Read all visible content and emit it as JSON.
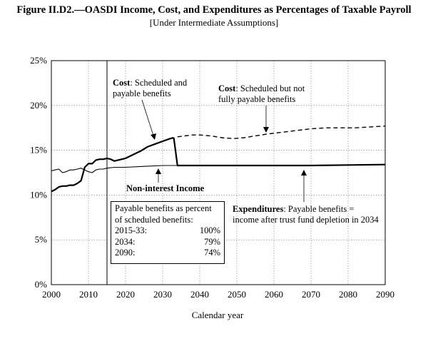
{
  "title": "Figure II.D2.—OASDI Income, Cost, and Expenditures as Percentages of Taxable Payroll",
  "subtitle": "[Under Intermediate Assumptions]",
  "chart_data": {
    "type": "line",
    "xlabel": "Calendar year",
    "ylabel": "",
    "xlim": [
      2000,
      2090
    ],
    "ylim": [
      0,
      25
    ],
    "x_ticks": [
      "2000",
      "2010",
      "2020",
      "2030",
      "2040",
      "2050",
      "2060",
      "2070",
      "2080",
      "2090"
    ],
    "y_ticks": [
      "0%",
      "5%",
      "10%",
      "15%",
      "20%",
      "25%"
    ],
    "grid": true,
    "vertical_marker_year": 2015,
    "series": [
      {
        "style": "solid-thick",
        "x": [
          2000,
          2001,
          2002,
          2003,
          2004,
          2005,
          2006,
          2007,
          2008,
          2009,
          2010,
          2011,
          2012,
          2013,
          2014,
          2015,
          2016,
          2017,
          2018,
          2019,
          2020,
          2022,
          2024,
          2026,
          2028,
          2030,
          2032,
          2033
        ],
        "y": [
          10.4,
          10.6,
          10.9,
          11.0,
          11.0,
          11.1,
          11.1,
          11.3,
          11.6,
          13.1,
          13.5,
          13.5,
          13.9,
          14.0,
          14.0,
          14.1,
          14.0,
          13.8,
          13.9,
          14.0,
          14.1,
          14.5,
          14.9,
          15.4,
          15.7,
          16.0,
          16.3,
          16.4
        ]
      },
      {
        "style": "dashed",
        "x": [
          2034,
          2036,
          2038,
          2040,
          2043,
          2046,
          2049,
          2052,
          2055,
          2058,
          2062,
          2066,
          2070,
          2074,
          2078,
          2082,
          2086,
          2090
        ],
        "y": [
          16.5,
          16.6,
          16.7,
          16.7,
          16.6,
          16.4,
          16.3,
          16.4,
          16.6,
          16.8,
          17.0,
          17.2,
          17.4,
          17.5,
          17.5,
          17.5,
          17.6,
          17.7
        ]
      },
      {
        "style": "solid-thin",
        "x": [
          2000,
          2001,
          2002,
          2003,
          2004,
          2005,
          2006,
          2007,
          2008,
          2009,
          2010,
          2011,
          2012,
          2013,
          2014,
          2015,
          2017,
          2020,
          2025,
          2030,
          2034,
          2040,
          2050,
          2060,
          2070,
          2080,
          2090
        ],
        "y": [
          12.7,
          12.8,
          12.9,
          12.5,
          12.6,
          12.8,
          12.8,
          12.9,
          13.0,
          12.8,
          12.6,
          12.5,
          12.8,
          12.9,
          12.9,
          13.0,
          13.1,
          13.1,
          13.2,
          13.3,
          13.3,
          13.3,
          13.3,
          13.3,
          13.3,
          13.35,
          13.4
        ]
      },
      {
        "style": "solid-thick",
        "x": [
          2033,
          2034,
          2040,
          2050,
          2060,
          2070,
          2080,
          2090
        ],
        "y": [
          16.4,
          13.3,
          13.3,
          13.3,
          13.3,
          13.3,
          13.35,
          13.4
        ]
      }
    ],
    "annotations": {
      "cost1_bold": "Cost",
      "cost1_a": ": Scheduled and",
      "cost1_b": "payable benefits",
      "cost2_bold": "Cost",
      "cost2_a": ": Scheduled but not",
      "cost2_b": "fully payable benefits",
      "income": "Non-interest Income",
      "exp_bold": "Expenditures",
      "exp_a": ": Payable benefits =",
      "exp_b": "income after trust fund depletion in 2034"
    },
    "table_box": {
      "heading1": "Payable benefits as percent",
      "heading2": "of scheduled benefits:",
      "rows": [
        {
          "label": "2015-33:",
          "value": "100%"
        },
        {
          "label": "2034:",
          "value": "79%"
        },
        {
          "label": "2090:",
          "value": "74%"
        }
      ]
    }
  }
}
